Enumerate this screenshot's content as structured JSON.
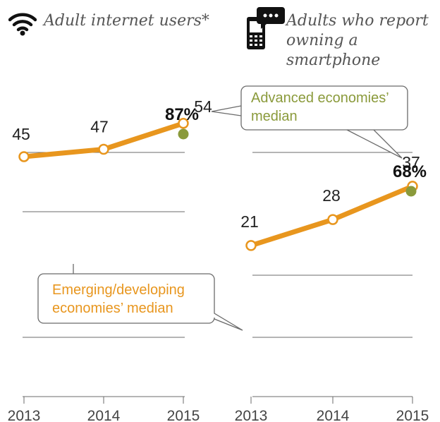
{
  "colors": {
    "emerging": "#E8961E",
    "advanced": "#8A9A3B",
    "grid": "#6b6b6b",
    "text": "#222222",
    "title": "#555555"
  },
  "icons": [
    "wifi-icon",
    "smartphone-chat-icon"
  ],
  "callouts": {
    "advanced": [
      "Advanced economies’",
      "median"
    ],
    "emerging": [
      "Emerging/developing",
      "economies’ median"
    ]
  },
  "chart_data": [
    {
      "type": "line",
      "title": "Adult internet users*",
      "x": [
        "2013",
        "2014",
        "2015"
      ],
      "series": [
        {
          "name": "Emerging/developing economies’ median",
          "values": [
            45,
            47,
            54
          ],
          "labels": [
            "45",
            "47",
            "54"
          ]
        },
        {
          "name": "Advanced economies’ median",
          "values": [
            null,
            null,
            87
          ],
          "labels": [
            "",
            "",
            "87%"
          ]
        }
      ],
      "grid": true
    },
    {
      "type": "line",
      "title": "Adults who report owning a smartphone",
      "x": [
        "2013",
        "2014",
        "2015"
      ],
      "series": [
        {
          "name": "Emerging/developing economies’ median",
          "values": [
            21,
            28,
            37
          ],
          "labels": [
            "21",
            "28",
            "37"
          ]
        },
        {
          "name": "Advanced economies’ median",
          "values": [
            null,
            null,
            68
          ],
          "labels": [
            "",
            "",
            "68%"
          ]
        }
      ],
      "grid": true
    }
  ]
}
